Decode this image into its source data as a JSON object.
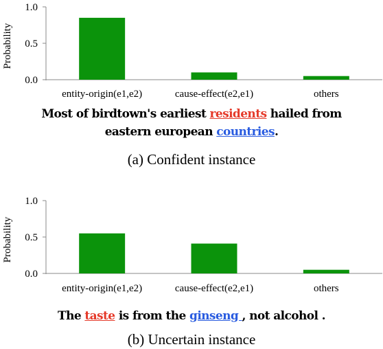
{
  "chart_data": [
    {
      "type": "bar",
      "categories": [
        "entity-origin(e1,e2)",
        "cause-effect(e2,e1)",
        "others"
      ],
      "values": [
        0.85,
        0.1,
        0.05
      ],
      "ylabel": "Probability",
      "ylim": [
        0,
        1.0
      ],
      "yticks": [
        "0.0",
        "0.5",
        "1.0"
      ],
      "bar_color": "#0b930b",
      "grid": false
    },
    {
      "type": "bar",
      "categories": [
        "entity-origin(e1,e2)",
        "cause-effect(e2,e1)",
        "others"
      ],
      "values": [
        0.55,
        0.41,
        0.05
      ],
      "ylabel": "Probability",
      "ylim": [
        0,
        1.0
      ],
      "yticks": [
        "0.0",
        "0.5",
        "1.0"
      ],
      "bar_color": "#0b930b",
      "grid": false
    }
  ],
  "sentence_a": {
    "part1": "Most of birdtown's earliest ",
    "head": "residents",
    "part2": " hailed from",
    "part3": "eastern european ",
    "tail": "countries",
    "part4": "."
  },
  "caption_a": "(a) Confident instance",
  "sentence_b": {
    "part1": "The ",
    "head": "taste",
    "part2": " is from the ",
    "tail": "ginseng ",
    "part3": ", not alcohol ."
  },
  "caption_b": "(b) Uncertain instance",
  "colors": {
    "head_entity": "#e53a2a",
    "tail_entity": "#2a5ce0"
  }
}
